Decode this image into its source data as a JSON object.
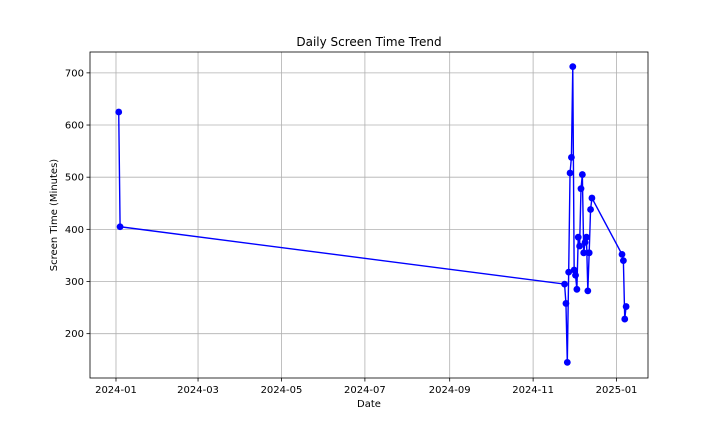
{
  "chart_data": {
    "type": "line",
    "title": "Daily Screen Time Trend",
    "xlabel": "Date",
    "ylabel": "Screen Time (Minutes)",
    "x_type": "date",
    "xlim": [
      "2023-12-13",
      "2025-01-24"
    ],
    "ylim": [
      115,
      740
    ],
    "xticks": [
      "2024-01-01",
      "2024-03-01",
      "2024-05-01",
      "2024-07-01",
      "2024-09-01",
      "2024-11-01",
      "2025-01-01"
    ],
    "xtick_labels": [
      "2024-01",
      "2024-03",
      "2024-05",
      "2024-07",
      "2024-09",
      "2024-11",
      "2025-01"
    ],
    "yticks": [
      200,
      300,
      400,
      500,
      600,
      700
    ],
    "grid": true,
    "marker": "circle",
    "series": [
      {
        "name": "",
        "color": "#0000ff",
        "points": [
          {
            "x": "2024-01-03",
            "y": 625
          },
          {
            "x": "2024-01-04",
            "y": 405
          },
          {
            "x": "2024-11-24",
            "y": 295
          },
          {
            "x": "2024-11-25",
            "y": 258
          },
          {
            "x": "2024-11-26",
            "y": 145
          },
          {
            "x": "2024-11-27",
            "y": 318
          },
          {
            "x": "2024-11-28",
            "y": 508
          },
          {
            "x": "2024-11-29",
            "y": 538
          },
          {
            "x": "2024-11-30",
            "y": 712
          },
          {
            "x": "2024-12-01",
            "y": 322
          },
          {
            "x": "2024-12-02",
            "y": 312
          },
          {
            "x": "2024-12-03",
            "y": 285
          },
          {
            "x": "2024-12-04",
            "y": 385
          },
          {
            "x": "2024-12-05",
            "y": 368
          },
          {
            "x": "2024-12-06",
            "y": 478
          },
          {
            "x": "2024-12-07",
            "y": 505
          },
          {
            "x": "2024-12-08",
            "y": 355
          },
          {
            "x": "2024-12-09",
            "y": 375
          },
          {
            "x": "2024-12-10",
            "y": 385
          },
          {
            "x": "2024-12-11",
            "y": 282
          },
          {
            "x": "2024-12-12",
            "y": 355
          },
          {
            "x": "2024-12-13",
            "y": 438
          },
          {
            "x": "2024-12-14",
            "y": 460
          },
          {
            "x": "2025-01-05",
            "y": 352
          },
          {
            "x": "2025-01-06",
            "y": 340
          },
          {
            "x": "2025-01-07",
            "y": 228
          },
          {
            "x": "2025-01-08",
            "y": 252
          }
        ]
      }
    ]
  }
}
